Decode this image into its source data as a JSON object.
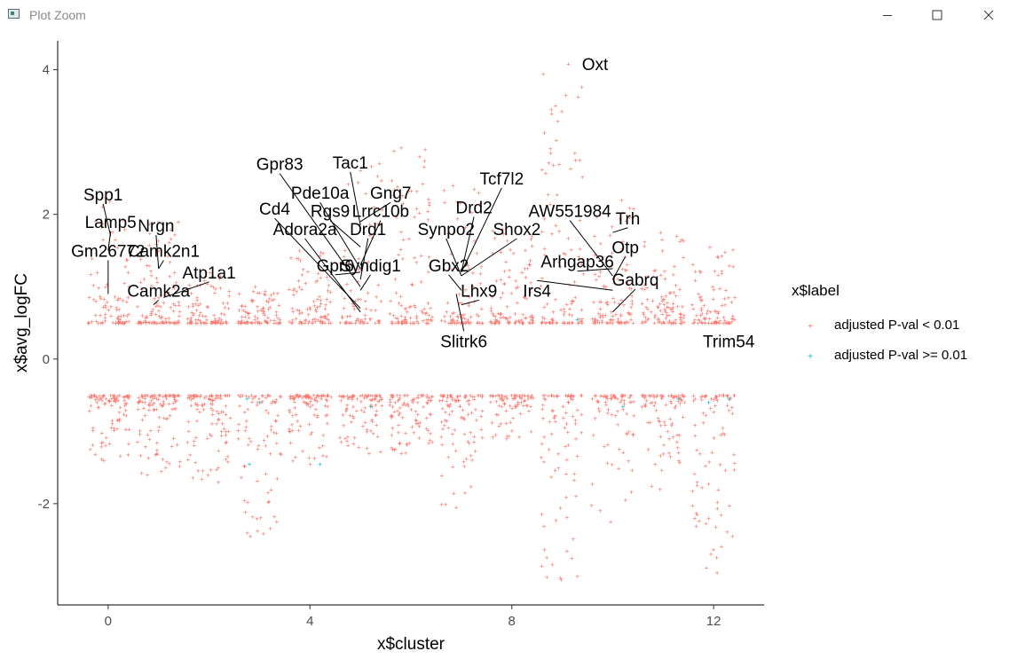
{
  "window": {
    "title": "Plot Zoom",
    "minimize_icon": "minimize-icon",
    "maximize_icon": "maximize-icon",
    "close_icon": "close-icon"
  },
  "chart_data": {
    "type": "scatter",
    "xlabel": "x$cluster",
    "ylabel": "x$avg_logFC",
    "xlim": [
      -1,
      13
    ],
    "ylim": [
      -3.4,
      4.4
    ],
    "xticks": [
      0,
      4,
      8,
      12
    ],
    "xtick_labels": [
      "0",
      "4",
      "8",
      "12"
    ],
    "yticks": [
      -2,
      0,
      2,
      4
    ],
    "ytick_labels": [
      "-2",
      "0",
      "2",
      "4"
    ],
    "legend": {
      "title": "x$label",
      "position": "right",
      "entries": [
        {
          "label": "adjusted P-val < 0.01",
          "color": "#F8766D"
        },
        {
          "label": "adjusted P-val >= 0.01",
          "color": "#00BFC4"
        }
      ]
    },
    "colors": {
      "significant": "#F8766D",
      "not_significant": "#00BFC4"
    },
    "points_note": "Jittered markers per cluster 0-12; |logFC| >= 0.5 for all shown points",
    "clusters": [
      {
        "cluster": 0,
        "up_max": 2.3,
        "down_min": -1.4
      },
      {
        "cluster": 1,
        "up_max": 1.9,
        "down_min": -1.6
      },
      {
        "cluster": 2,
        "up_max": 1.2,
        "down_min": -1.7
      },
      {
        "cluster": 3,
        "up_max": 1.0,
        "down_min": -2.45
      },
      {
        "cluster": 4,
        "up_max": 1.5,
        "down_min": -1.45
      },
      {
        "cluster": 5,
        "up_max": 2.8,
        "down_min": -1.3
      },
      {
        "cluster": 6,
        "up_max": 2.92,
        "down_min": -1.3
      },
      {
        "cluster": 7,
        "up_max": 2.4,
        "down_min": -2.05
      },
      {
        "cluster": 8,
        "up_max": 1.8,
        "down_min": -1.1
      },
      {
        "cluster": 9,
        "up_max": 4.08,
        "down_min": -3.05
      },
      {
        "cluster": 10,
        "up_max": 2.2,
        "down_min": -2.25
      },
      {
        "cluster": 11,
        "up_max": 1.75,
        "down_min": -1.8
      },
      {
        "cluster": 12,
        "up_max": 1.55,
        "down_min": -2.95
      }
    ],
    "gene_labels": [
      {
        "text": "Oxt",
        "x": 9.65,
        "y": 4.08
      },
      {
        "text": "Spp1",
        "x": -0.1,
        "y": 2.28
      },
      {
        "text": "Lamp5",
        "x": 0.05,
        "y": 1.9
      },
      {
        "text": "Nrgn",
        "x": 0.95,
        "y": 1.85
      },
      {
        "text": "Gm26772",
        "x": 0.0,
        "y": 1.5
      },
      {
        "text": "Camk2n1",
        "x": 1.1,
        "y": 1.5
      },
      {
        "text": "Camk2a",
        "x": 1.0,
        "y": 0.95
      },
      {
        "text": "Atp1a1",
        "x": 2.0,
        "y": 1.2
      },
      {
        "text": "Cd4",
        "x": 3.3,
        "y": 2.08
      },
      {
        "text": "Gpr83",
        "x": 3.4,
        "y": 2.7
      },
      {
        "text": "Pde10a",
        "x": 4.2,
        "y": 2.3
      },
      {
        "text": "Tac1",
        "x": 4.8,
        "y": 2.72
      },
      {
        "text": "Gng7",
        "x": 5.6,
        "y": 2.3
      },
      {
        "text": "Rgs9",
        "x": 4.4,
        "y": 2.05
      },
      {
        "text": "Lrrc10b",
        "x": 5.4,
        "y": 2.05
      },
      {
        "text": "Adora2a",
        "x": 3.9,
        "y": 1.8
      },
      {
        "text": "Drd1",
        "x": 5.15,
        "y": 1.8
      },
      {
        "text": "Gpr6",
        "x": 4.5,
        "y": 1.3
      },
      {
        "text": "Syndig1",
        "x": 5.2,
        "y": 1.3
      },
      {
        "text": "Drd2",
        "x": 7.25,
        "y": 2.1
      },
      {
        "text": "Synpo2",
        "x": 6.7,
        "y": 1.8
      },
      {
        "text": "Tcf7l2",
        "x": 7.8,
        "y": 2.5
      },
      {
        "text": "Gbx2",
        "x": 6.75,
        "y": 1.3
      },
      {
        "text": "Shox2",
        "x": 8.1,
        "y": 1.8
      },
      {
        "text": "Lhx9",
        "x": 7.35,
        "y": 0.95
      },
      {
        "text": "Slitrk6",
        "x": 7.05,
        "y": 0.25
      },
      {
        "text": "AW551984",
        "x": 9.15,
        "y": 2.05
      },
      {
        "text": "Trh",
        "x": 10.3,
        "y": 1.95
      },
      {
        "text": "Arhgap36",
        "x": 9.3,
        "y": 1.35
      },
      {
        "text": "Otp",
        "x": 10.25,
        "y": 1.55
      },
      {
        "text": "Irs4",
        "x": 8.5,
        "y": 0.95
      },
      {
        "text": "Gabrq",
        "x": 10.45,
        "y": 1.1
      },
      {
        "text": "Trim54",
        "x": 12.3,
        "y": 0.25
      }
    ]
  }
}
